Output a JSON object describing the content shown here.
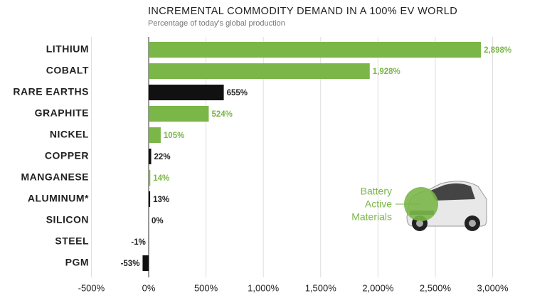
{
  "chart_data": {
    "type": "hbar",
    "title": "INCREMENTAL COMMODITY DEMAND IN A 100% EV WORLD",
    "subtitle": "Percentage of today's global production",
    "categories": [
      "LITHIUM",
      "COBALT",
      "RARE EARTHS",
      "GRAPHITE",
      "NICKEL",
      "COPPER",
      "MANGANESE",
      "ALUMINUM*",
      "SILICON",
      "STEEL",
      "PGM"
    ],
    "values": [
      2898,
      1928,
      655,
      524,
      105,
      22,
      14,
      13,
      0,
      -1,
      -53
    ],
    "value_labels": [
      "2,898%",
      "1,928%",
      "655%",
      "524%",
      "105%",
      "22%",
      "14%",
      "13%",
      "0%",
      "-1%",
      "-53%"
    ],
    "colors": [
      "#7ab648",
      "#7ab648",
      "#111111",
      "#7ab648",
      "#7ab648",
      "#111111",
      "#7ab648",
      "#111111",
      "#111111",
      "#111111",
      "#111111"
    ],
    "xlim": [
      -500,
      3200
    ],
    "xticks": [
      {
        "value": -500,
        "label": "-500%"
      },
      {
        "value": 0,
        "label": "0%"
      },
      {
        "value": 500,
        "label": "500%"
      },
      {
        "value": 1000,
        "label": "1,000%"
      },
      {
        "value": 1500,
        "label": "1,500%"
      },
      {
        "value": 2000,
        "label": "2,000%"
      },
      {
        "value": 2500,
        "label": "2,500%"
      },
      {
        "value": 3000,
        "label": "3,000%"
      }
    ],
    "grid": true,
    "legend": {
      "color": "#7ab648",
      "label_lines": [
        "Battery",
        "Active",
        "Materials"
      ]
    }
  }
}
